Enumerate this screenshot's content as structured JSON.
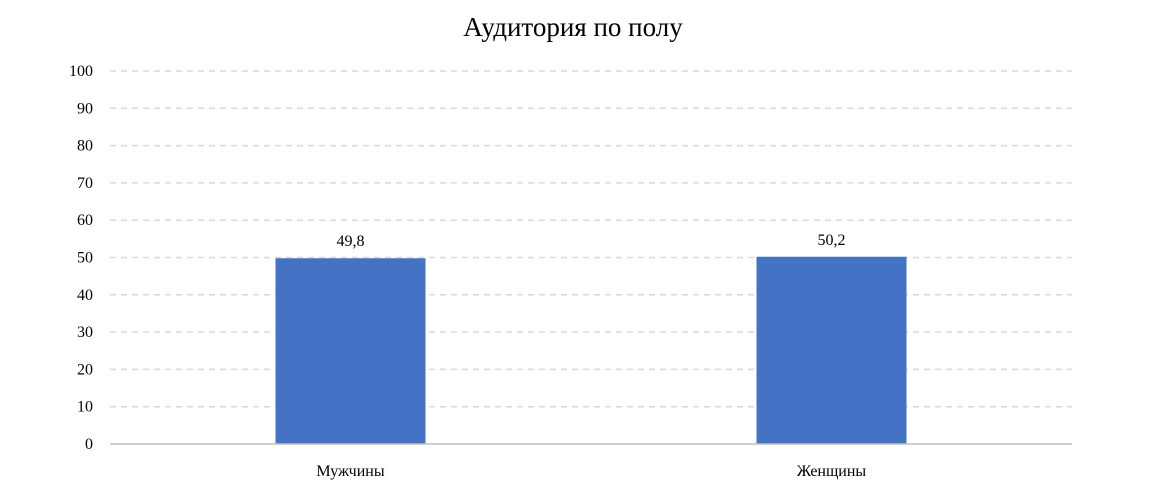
{
  "chart_data": {
    "type": "bar",
    "title": "Аудитория по полу",
    "xlabel": "",
    "ylabel": "",
    "categories": [
      "Мужчины",
      "Женщины"
    ],
    "values": [
      49.8,
      50.2
    ],
    "data_labels": [
      "49,8",
      "50,2"
    ],
    "ylim": [
      0,
      100
    ],
    "ytick_step": 10,
    "grid": true,
    "legend": "none",
    "bar_color": "#4472C4"
  }
}
